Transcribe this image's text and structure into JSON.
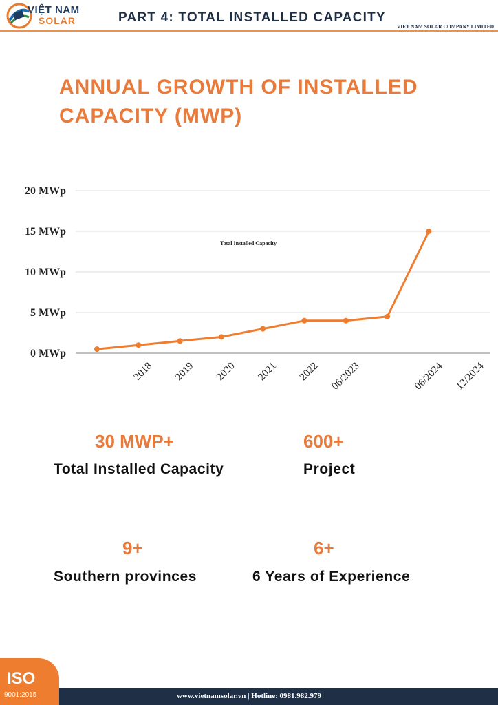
{
  "header": {
    "logo_line1": "VIỆT NAM",
    "logo_line2": "SOLAR",
    "part_title": "PART 4: TOTAL INSTALLED CAPACITY",
    "company": "VIET NAM SOLAR COMPANY LIMITED",
    "accent": "#e8944e"
  },
  "main_title": "ANNUAL GROWTH OF INSTALLED CAPACITY (MWP)",
  "chart_data": {
    "type": "line",
    "title": "",
    "series": [
      {
        "name": "Total Installed Capacity",
        "color": "#ee7d2f",
        "points": [
          {
            "x": "",
            "y": 0.5
          },
          {
            "x": "2018",
            "y": 1.0
          },
          {
            "x": "2019",
            "y": 1.5
          },
          {
            "x": "2020",
            "y": 2.0
          },
          {
            "x": "2021",
            "y": 3.0
          },
          {
            "x": "2022",
            "y": 4.0
          },
          {
            "x": "06/2023",
            "y": 4.0
          },
          {
            "x": "",
            "y": 4.5
          },
          {
            "x": "06/2024",
            "y": 15.0
          }
        ]
      }
    ],
    "x_tick_labels": [
      "2018",
      "2019",
      "2020",
      "2021",
      "2022",
      "06/2023",
      "06/2024",
      "12/2024"
    ],
    "y_ticks": [
      0,
      5,
      10,
      15,
      20
    ],
    "y_tick_labels": [
      "0 MWp",
      "5 MWp",
      "10 MWp",
      "15 MWp",
      "20 MWp"
    ],
    "ylim": [
      0,
      20
    ],
    "xlabel": "",
    "ylabel": "",
    "grid": true,
    "legend_placement": "upper-middle"
  },
  "stats": [
    {
      "value": "30 MWP+",
      "label": "Total Installed Capacity"
    },
    {
      "value": "600+",
      "label": "Project"
    },
    {
      "value": "9+",
      "label": "Southern provinces"
    },
    {
      "value": "6+",
      "label": "6 Years of Experience"
    }
  ],
  "footer": {
    "text": "www.vietnamsolar.vn | Hotline: 0981.982.979",
    "iso_text": "ISO",
    "iso_sub": "9001:2015"
  }
}
